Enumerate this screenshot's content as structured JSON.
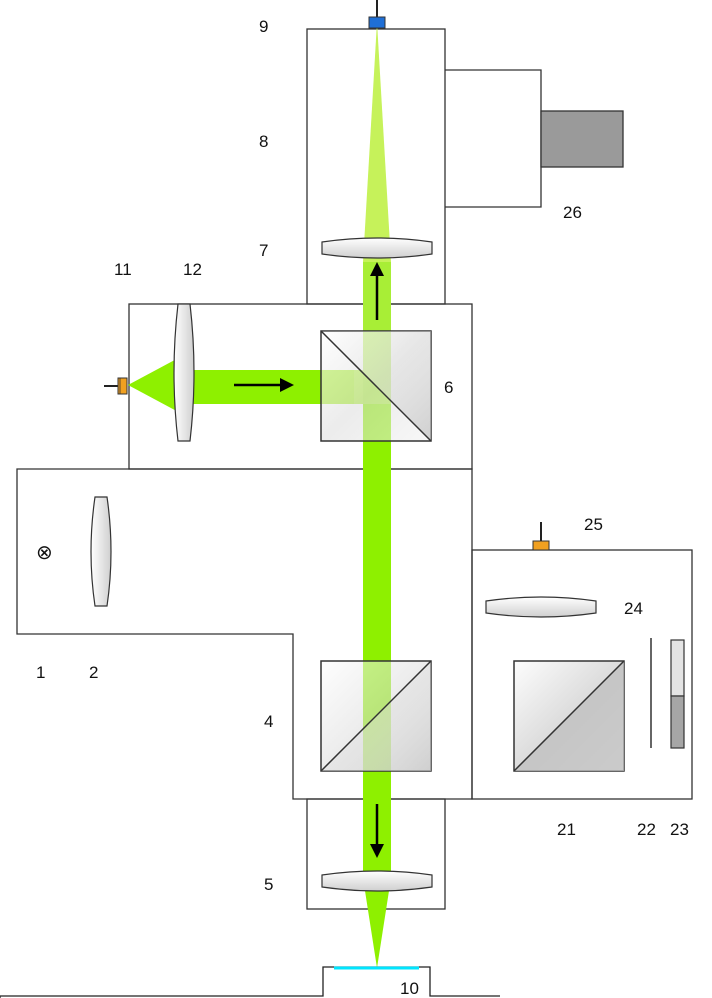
{
  "labels": {
    "l1": "1",
    "l2": "2",
    "l4": "4",
    "l5": "5",
    "l6": "6",
    "l7": "7",
    "l8": "8",
    "l9": "9",
    "l10": "10",
    "l11": "11",
    "l12": "12",
    "l21": "21",
    "l22": "22",
    "l23": "23",
    "l24": "24",
    "l25": "25",
    "l26": "26"
  },
  "symbols": {
    "lamp": "⊗"
  },
  "colors": {
    "beam": "#8ef000",
    "lens_fill": "#e6e6e6",
    "pmt_grey": "#9a9a9a",
    "orange_connector": "#f0a020",
    "blue_connector": "#1f6fd6",
    "sample_cyan": "#00e5ff",
    "outline": "#333333"
  }
}
